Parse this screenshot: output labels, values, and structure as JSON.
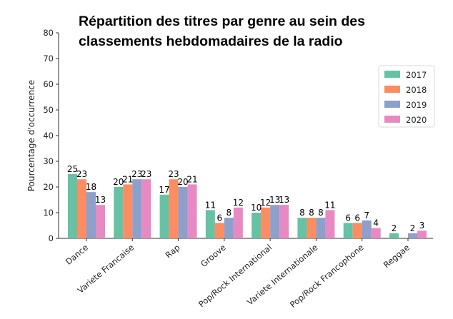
{
  "chart_data": {
    "type": "bar",
    "title_line1": "Répartition des titres par genre au sein des",
    "title_line2": "classements hebdomadaires de la radio",
    "xlabel": "",
    "ylabel": "Pourcentage d'occurrence",
    "ylim": [
      0,
      80
    ],
    "yticks": [
      0,
      10,
      20,
      30,
      40,
      50,
      60,
      70,
      80
    ],
    "grid": false,
    "legend_position": "top-right",
    "categories": [
      "Dance",
      "Variete Francaise",
      "Rap",
      "Groove",
      "Pop/Rock International",
      "Variete Internationale",
      "Pop/Rock Francophone",
      "Reggae"
    ],
    "series": [
      {
        "name": "2017",
        "color": "#66c2a5",
        "values": [
          25,
          20,
          17,
          11,
          10,
          8,
          6,
          2
        ]
      },
      {
        "name": "2018",
        "color": "#fc8d62",
        "values": [
          23,
          21,
          23,
          6,
          12,
          8,
          6,
          null
        ]
      },
      {
        "name": "2019",
        "color": "#8da0cb",
        "values": [
          18,
          23,
          20,
          8,
          13,
          8,
          7,
          2
        ]
      },
      {
        "name": "2020",
        "color": "#e78ac3",
        "values": [
          13,
          23,
          21,
          12,
          13,
          11,
          4,
          3
        ]
      }
    ]
  }
}
